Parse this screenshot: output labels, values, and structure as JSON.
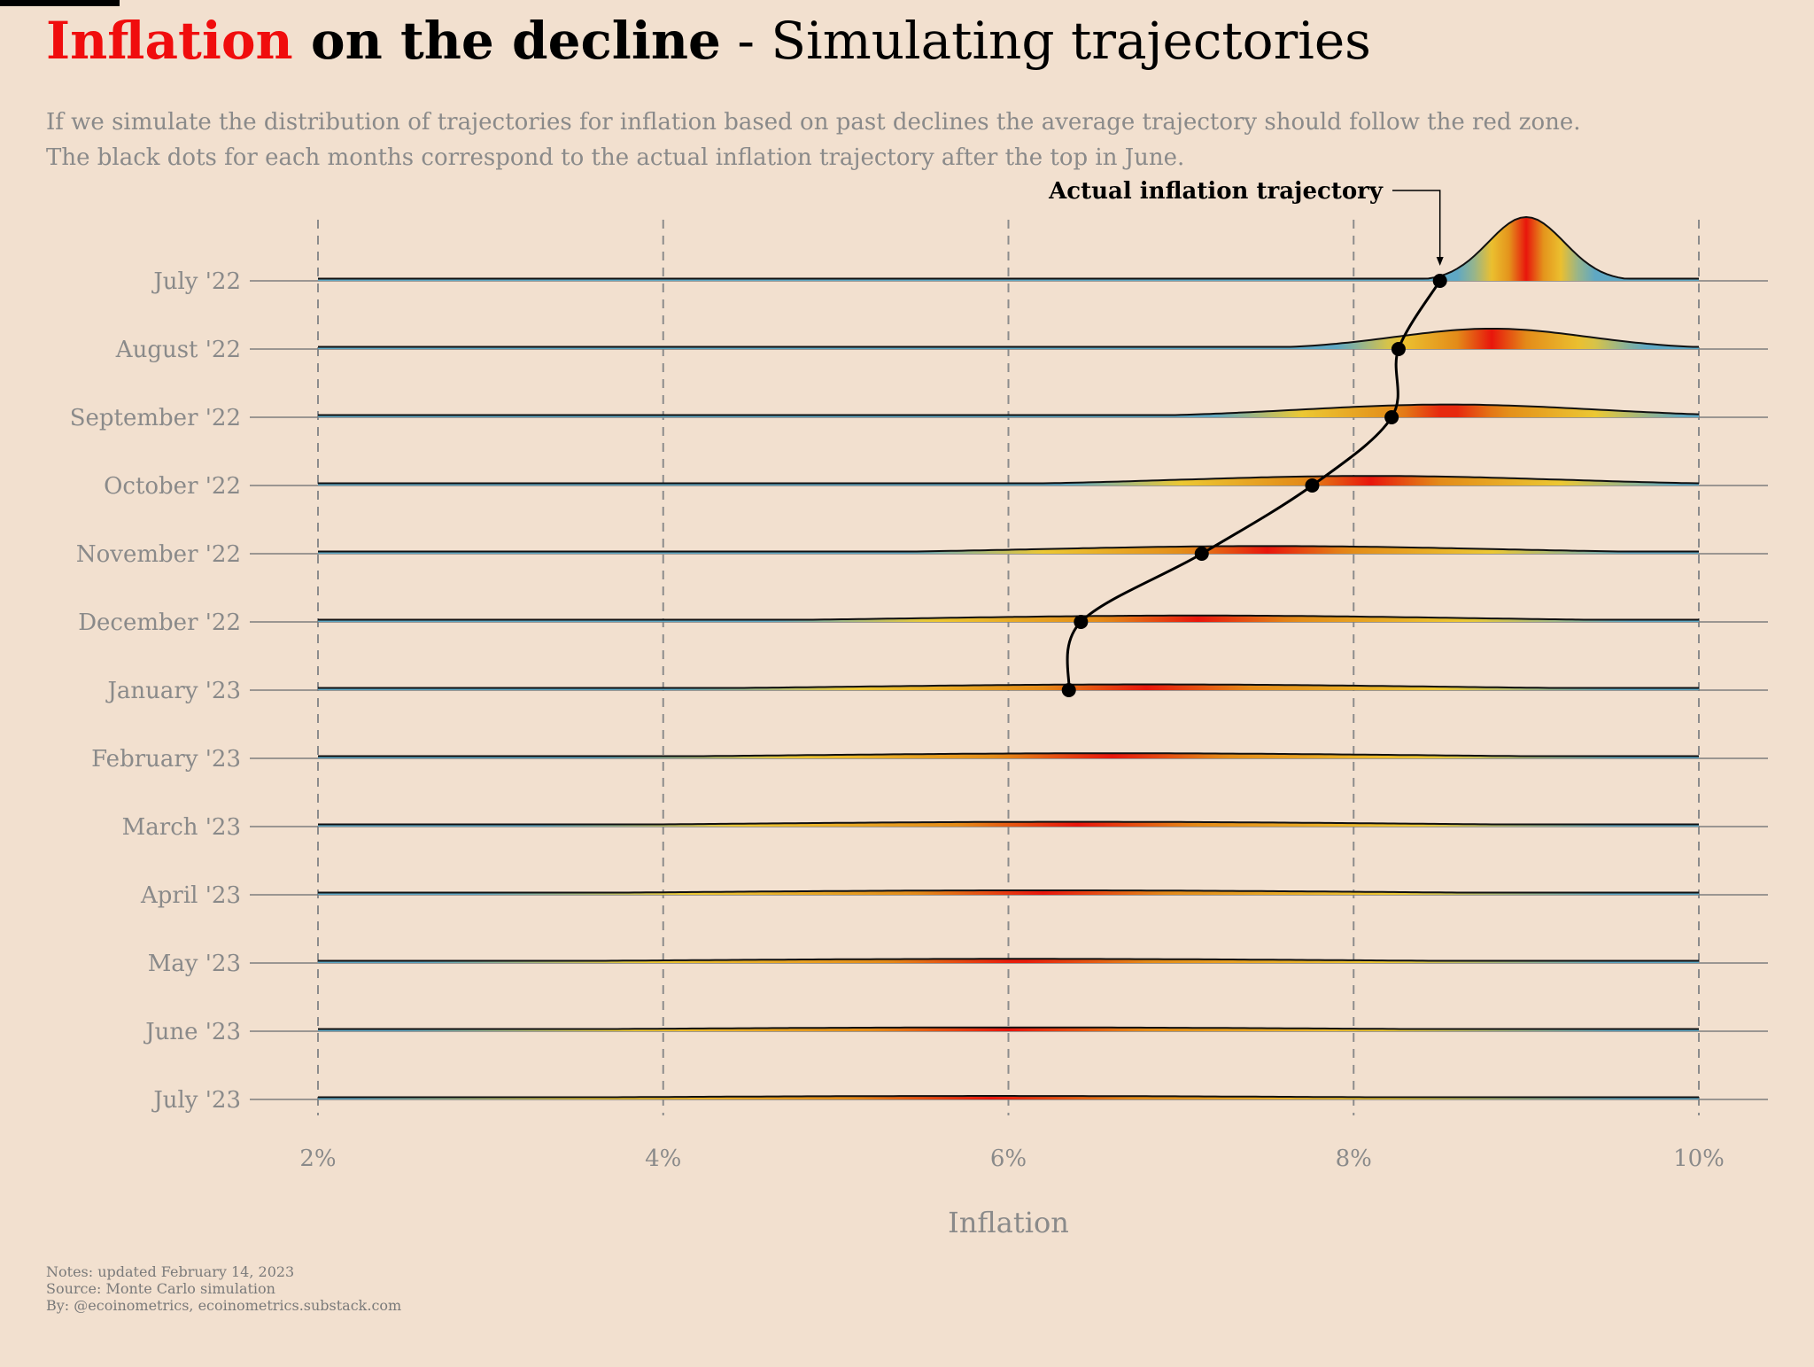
{
  "header": {
    "title_highlight": "Inflation",
    "title_bold": " on the decline",
    "title_rest": " - Simulating trajectories",
    "subtitle_line1": "If we simulate the distribution of trajectories for inflation based on past declines the average trajectory should follow the red zone.",
    "subtitle_line2": "The black dots for each months correspond to the actual inflation trajectory after the top in June."
  },
  "footer": {
    "notes": "Notes: updated February 14, 2023",
    "source": "Source: Monte Carlo simulation",
    "by": "By: @ecoinometrics, ecoinometrics.substack.com"
  },
  "colors": {
    "background": "#f2e0cf",
    "highlight_red": "#f00d0d",
    "density_blue": "#5fa8c4",
    "density_yellow": "#ecc833",
    "density_orange": "#e38a18",
    "density_red": "#e8160c"
  },
  "chart_data": {
    "type": "ridgeline",
    "xlabel": "Inflation",
    "xlim": [
      2,
      10
    ],
    "xticks": [
      2,
      4,
      6,
      8,
      10
    ],
    "xtick_labels": [
      "2%",
      "4%",
      "6%",
      "8%",
      "10%"
    ],
    "grid": "vertical dashed at ticks",
    "annotation": "Actual inflation trajectory",
    "rows": [
      {
        "label": "July '22",
        "mean": 9.0,
        "sd": 0.22,
        "peak": 1.0,
        "actual": 8.5
      },
      {
        "label": "August '22",
        "mean": 8.8,
        "sd": 0.55,
        "peak": 0.32,
        "actual": 8.26
      },
      {
        "label": "September '22",
        "mean": 8.55,
        "sd": 0.85,
        "peak": 0.2,
        "actual": 8.22
      },
      {
        "label": "October '22",
        "mean": 8.1,
        "sd": 1.1,
        "peak": 0.15,
        "actual": 7.76
      },
      {
        "label": "November '22",
        "mean": 7.5,
        "sd": 1.3,
        "peak": 0.12,
        "actual": 7.12
      },
      {
        "label": "December '22",
        "mean": 7.1,
        "sd": 1.55,
        "peak": 0.1,
        "actual": 6.42
      },
      {
        "label": "January '23",
        "mean": 6.8,
        "sd": 1.7,
        "peak": 0.09,
        "actual": 6.35
      },
      {
        "label": "February '23",
        "mean": 6.6,
        "sd": 1.85,
        "peak": 0.08
      },
      {
        "label": "March '23",
        "mean": 6.4,
        "sd": 1.95,
        "peak": 0.075
      },
      {
        "label": "April '23",
        "mean": 6.2,
        "sd": 2.05,
        "peak": 0.07
      },
      {
        "label": "May '23",
        "mean": 6.05,
        "sd": 2.15,
        "peak": 0.065
      },
      {
        "label": "June '23",
        "mean": 6.0,
        "sd": 2.2,
        "peak": 0.06
      },
      {
        "label": "July '23",
        "mean": 5.9,
        "sd": 2.3,
        "peak": 0.055
      }
    ]
  }
}
